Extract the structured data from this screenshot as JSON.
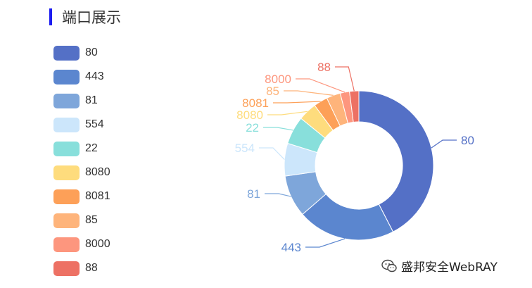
{
  "header": {
    "title": "端口展示"
  },
  "watermark": {
    "text": "盛邦安全WebRAY",
    "icon": "wechat-icon"
  },
  "chart_data": {
    "type": "pie",
    "donut": true,
    "legend_position": "left",
    "labels": [
      "80",
      "443",
      "81",
      "554",
      "22",
      "8080",
      "8081",
      "85",
      "8000",
      "88"
    ],
    "values": [
      42,
      21,
      9,
      7,
      6,
      4,
      3,
      3,
      2,
      2
    ],
    "colors": [
      "#5470c6",
      "#5b86cf",
      "#7ea6da",
      "#cce6fb",
      "#88dfdb",
      "#fedc7d",
      "#fda058",
      "#feb47b",
      "#fd967e",
      "#ed7164"
    ]
  }
}
